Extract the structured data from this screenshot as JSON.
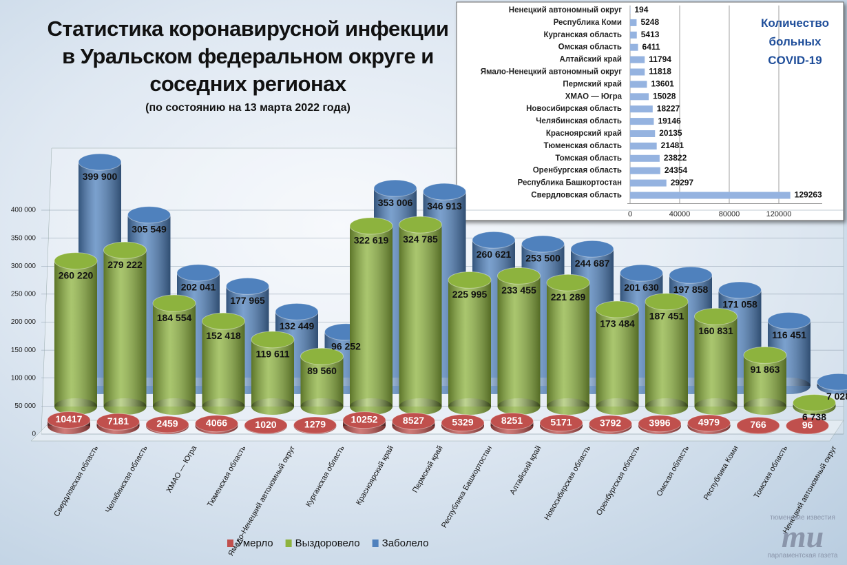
{
  "chart_data": [
    {
      "type": "cylinder3d",
      "title": "Статистика коронавирусной инфекции в Уральском федеральном округе и соседних регионах",
      "subtitle": "(по состоянию на 13 марта 2022 года)",
      "categories": [
        "Свердловская область",
        "Челябинская область",
        "ХМАО — Югра",
        "Тюменская область",
        "Ямало-Ненецкий автономный округ",
        "Курганская область",
        "Красноярский край",
        "Пермский край",
        "Республика Башкортостан",
        "Алтайский край",
        "Новосибирская область",
        "Оренбургская область",
        "Омская область",
        "Республика Коми",
        "Томская область",
        "Ненецкий автономный округ"
      ],
      "series": [
        {
          "name": "Умерло",
          "color": "#c0504d",
          "values": [
            10417,
            7181,
            2459,
            4066,
            1020,
            1279,
            10252,
            8527,
            5329,
            8251,
            5171,
            3792,
            3996,
            4979,
            766,
            96
          ]
        },
        {
          "name": "Выздоровело",
          "color": "#8db33e",
          "values": [
            260220,
            279222,
            184554,
            152418,
            119611,
            89560,
            322619,
            324785,
            225995,
            233455,
            221289,
            173484,
            187451,
            160831,
            91863,
            6738
          ],
          "value_labels": [
            "260 220",
            "279 222",
            "184 554",
            "152 418",
            "119 611",
            "89 560",
            "322 619",
            "324 785",
            "225 995",
            "233 455",
            "221 289",
            "173 484",
            "187 451",
            "160 831",
            "91 863",
            "6 738"
          ]
        },
        {
          "name": "Заболело",
          "color": "#4f81bd",
          "values": [
            399900,
            305549,
            202041,
            177965,
            132449,
            96252,
            353006,
            346913,
            260621,
            253500,
            244687,
            201630,
            197858,
            171058,
            116451,
            7028
          ],
          "value_labels": [
            "399 900",
            "305 549",
            "202 041",
            "177 965",
            "132 449",
            "96 252",
            "353 006",
            "346 913",
            "260 621",
            "253 500",
            "244 687",
            "201 630",
            "197 858",
            "171 058",
            "116 451",
            "7 028"
          ]
        }
      ],
      "ylim": [
        0,
        400000
      ],
      "yticks": [
        0,
        {
          "value": 50000,
          "label": "50 000"
        },
        {
          "value": 100000,
          "label": "100 000"
        },
        {
          "value": 150000,
          "label": "150 000"
        },
        {
          "value": 200000,
          "label": "200 000"
        },
        {
          "value": 250000,
          "label": "250 000"
        },
        {
          "value": 300000,
          "label": "300 000"
        },
        {
          "value": 350000,
          "label": "350 000"
        },
        {
          "value": 400000,
          "label": "400 000"
        }
      ],
      "grid": true,
      "legend": "bottom"
    },
    {
      "type": "barh",
      "title": "Количество больных COVID-19",
      "categories": [
        "Ненецкий автономный округ",
        "Республика Коми",
        "Курганская область",
        "Омская область",
        "Алтайский край",
        "Ямало-Ненецкий автономный округ",
        "Пермский край",
        "ХМАО — Югра",
        "Новосибирская область",
        "Челябинская область",
        "Красноярский край",
        "Тюменская область",
        "Томская область",
        "Оренбургская область",
        "Республика Башкортостан",
        "Свердловская область"
      ],
      "values": [
        194,
        5248,
        5413,
        6411,
        11794,
        11818,
        13601,
        15028,
        18227,
        19146,
        20135,
        21481,
        23822,
        24354,
        29297,
        129263
      ],
      "color": "#95b3e0",
      "xlim": [
        0,
        155000
      ],
      "xticks": [
        0,
        40000,
        80000,
        120000
      ],
      "grid": true
    }
  ],
  "logo": {
    "top": "тюменские известия",
    "mark": "ти",
    "bottom": "парламентская газета"
  }
}
